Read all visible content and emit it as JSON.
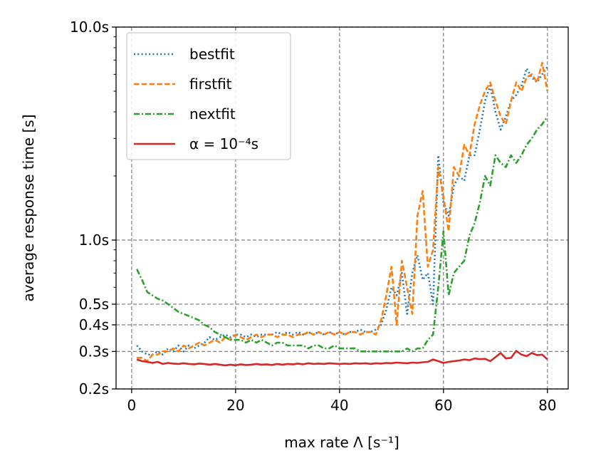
{
  "chart_data": {
    "type": "line",
    "title": "",
    "xlabel": "max rate Λ [s⁻¹]",
    "ylabel": "average response time [s]",
    "xlim": [
      -3,
      84
    ],
    "ylim": [
      0.2,
      10.0
    ],
    "yscale": "log",
    "grid": true,
    "legend_position": "top-left",
    "x_ticks": [
      0,
      20,
      40,
      60,
      80
    ],
    "x_tick_labels": [
      "0",
      "20",
      "40",
      "60",
      "80"
    ],
    "y_ticks": [
      0.2,
      0.3,
      0.4,
      0.5,
      1.0,
      10.0
    ],
    "y_tick_labels": [
      "0.2s",
      "0.3s",
      "0.4s",
      "0.5s",
      "1.0s",
      "10.0s"
    ],
    "series": [
      {
        "name": "bestfit",
        "color": "#1f77b4",
        "style": "dotted",
        "points": [
          [
            1,
            0.32
          ],
          [
            2,
            0.3
          ],
          [
            3,
            0.29
          ],
          [
            4,
            0.29
          ],
          [
            5,
            0.3
          ],
          [
            6,
            0.29
          ],
          [
            7,
            0.31
          ],
          [
            8,
            0.3
          ],
          [
            9,
            0.32
          ],
          [
            10,
            0.3
          ],
          [
            11,
            0.32
          ],
          [
            12,
            0.31
          ],
          [
            13,
            0.32
          ],
          [
            14,
            0.33
          ],
          [
            15,
            0.35
          ],
          [
            16,
            0.34
          ],
          [
            17,
            0.35
          ],
          [
            18,
            0.36
          ],
          [
            19,
            0.35
          ],
          [
            20,
            0.36
          ],
          [
            21,
            0.36
          ],
          [
            22,
            0.35
          ],
          [
            23,
            0.36
          ],
          [
            24,
            0.35
          ],
          [
            25,
            0.36
          ],
          [
            26,
            0.36
          ],
          [
            27,
            0.36
          ],
          [
            28,
            0.37
          ],
          [
            29,
            0.36
          ],
          [
            30,
            0.37
          ],
          [
            31,
            0.36
          ],
          [
            32,
            0.37
          ],
          [
            33,
            0.36
          ],
          [
            34,
            0.37
          ],
          [
            35,
            0.36
          ],
          [
            36,
            0.37
          ],
          [
            37,
            0.36
          ],
          [
            38,
            0.37
          ],
          [
            39,
            0.36
          ],
          [
            40,
            0.37
          ],
          [
            41,
            0.36
          ],
          [
            42,
            0.37
          ],
          [
            43,
            0.37
          ],
          [
            44,
            0.38
          ],
          [
            45,
            0.37
          ],
          [
            46,
            0.37
          ],
          [
            47,
            0.38
          ],
          [
            48,
            0.4
          ],
          [
            49,
            0.47
          ],
          [
            50,
            0.6
          ],
          [
            51,
            0.55
          ],
          [
            52,
            0.7
          ],
          [
            53,
            0.45
          ],
          [
            54,
            0.7
          ],
          [
            55,
            0.85
          ],
          [
            56,
            0.65
          ],
          [
            57,
            0.7
          ],
          [
            58,
            0.5
          ],
          [
            59,
            2.5
          ],
          [
            60,
            1.5
          ],
          [
            61,
            1.3
          ],
          [
            62,
            1.8
          ],
          [
            63,
            2.0
          ],
          [
            64,
            1.9
          ],
          [
            65,
            2.5
          ],
          [
            66,
            2.5
          ],
          [
            67,
            3.3
          ],
          [
            68,
            4.5
          ],
          [
            69,
            5.3
          ],
          [
            70,
            4.0
          ],
          [
            71,
            3.3
          ],
          [
            72,
            3.8
          ],
          [
            73,
            4.5
          ],
          [
            74,
            4.8
          ],
          [
            75,
            5.3
          ],
          [
            76,
            6.4
          ],
          [
            77,
            5.8
          ],
          [
            78,
            5.5
          ],
          [
            79,
            6.0
          ],
          [
            80,
            6.5
          ]
        ]
      },
      {
        "name": "firstfit",
        "color": "#ff7f0e",
        "style": "dashed",
        "points": [
          [
            1,
            0.28
          ],
          [
            2,
            0.28
          ],
          [
            3,
            0.27
          ],
          [
            4,
            0.29
          ],
          [
            5,
            0.29
          ],
          [
            6,
            0.3
          ],
          [
            7,
            0.3
          ],
          [
            8,
            0.31
          ],
          [
            9,
            0.3
          ],
          [
            10,
            0.32
          ],
          [
            11,
            0.31
          ],
          [
            12,
            0.32
          ],
          [
            13,
            0.33
          ],
          [
            14,
            0.32
          ],
          [
            15,
            0.33
          ],
          [
            16,
            0.34
          ],
          [
            17,
            0.33
          ],
          [
            18,
            0.35
          ],
          [
            19,
            0.34
          ],
          [
            20,
            0.36
          ],
          [
            21,
            0.35
          ],
          [
            22,
            0.34
          ],
          [
            23,
            0.35
          ],
          [
            24,
            0.36
          ],
          [
            25,
            0.35
          ],
          [
            26,
            0.36
          ],
          [
            27,
            0.36
          ],
          [
            28,
            0.35
          ],
          [
            29,
            0.36
          ],
          [
            30,
            0.36
          ],
          [
            31,
            0.35
          ],
          [
            32,
            0.36
          ],
          [
            33,
            0.36
          ],
          [
            34,
            0.37
          ],
          [
            35,
            0.36
          ],
          [
            36,
            0.37
          ],
          [
            37,
            0.36
          ],
          [
            38,
            0.37
          ],
          [
            39,
            0.36
          ],
          [
            40,
            0.37
          ],
          [
            41,
            0.36
          ],
          [
            42,
            0.37
          ],
          [
            43,
            0.37
          ],
          [
            44,
            0.36
          ],
          [
            45,
            0.37
          ],
          [
            46,
            0.37
          ],
          [
            47,
            0.36
          ],
          [
            48,
            0.42
          ],
          [
            49,
            0.55
          ],
          [
            50,
            0.75
          ],
          [
            51,
            0.4
          ],
          [
            52,
            0.8
          ],
          [
            53,
            0.6
          ],
          [
            54,
            0.45
          ],
          [
            55,
            1.3
          ],
          [
            56,
            1.7
          ],
          [
            57,
            0.75
          ],
          [
            58,
            0.9
          ],
          [
            59,
            2.2
          ],
          [
            60,
            1.6
          ],
          [
            61,
            1.1
          ],
          [
            62,
            2.2
          ],
          [
            63,
            2.0
          ],
          [
            64,
            2.8
          ],
          [
            65,
            2.5
          ],
          [
            66,
            3.5
          ],
          [
            67,
            4.3
          ],
          [
            68,
            5.0
          ],
          [
            69,
            5.5
          ],
          [
            70,
            4.5
          ],
          [
            71,
            3.8
          ],
          [
            72,
            3.5
          ],
          [
            73,
            4.5
          ],
          [
            74,
            5.5
          ],
          [
            75,
            5.0
          ],
          [
            76,
            5.8
          ],
          [
            77,
            6.0
          ],
          [
            78,
            5.5
          ],
          [
            79,
            6.8
          ],
          [
            80,
            5.0
          ]
        ]
      },
      {
        "name": "nextfit",
        "color": "#2ca02c",
        "style": "dashdot",
        "points": [
          [
            1,
            0.73
          ],
          [
            2,
            0.65
          ],
          [
            3,
            0.57
          ],
          [
            4,
            0.55
          ],
          [
            5,
            0.53
          ],
          [
            6,
            0.52
          ],
          [
            7,
            0.5
          ],
          [
            8,
            0.48
          ],
          [
            9,
            0.46
          ],
          [
            10,
            0.45
          ],
          [
            11,
            0.44
          ],
          [
            12,
            0.43
          ],
          [
            13,
            0.42
          ],
          [
            14,
            0.4
          ],
          [
            15,
            0.39
          ],
          [
            16,
            0.37
          ],
          [
            17,
            0.36
          ],
          [
            18,
            0.35
          ],
          [
            19,
            0.34
          ],
          [
            20,
            0.34
          ],
          [
            21,
            0.34
          ],
          [
            22,
            0.33
          ],
          [
            23,
            0.34
          ],
          [
            24,
            0.33
          ],
          [
            25,
            0.34
          ],
          [
            26,
            0.33
          ],
          [
            27,
            0.32
          ],
          [
            28,
            0.33
          ],
          [
            29,
            0.33
          ],
          [
            30,
            0.32
          ],
          [
            31,
            0.32
          ],
          [
            32,
            0.32
          ],
          [
            33,
            0.32
          ],
          [
            34,
            0.31
          ],
          [
            35,
            0.32
          ],
          [
            36,
            0.32
          ],
          [
            37,
            0.31
          ],
          [
            38,
            0.31
          ],
          [
            39,
            0.32
          ],
          [
            40,
            0.31
          ],
          [
            41,
            0.31
          ],
          [
            42,
            0.31
          ],
          [
            43,
            0.31
          ],
          [
            44,
            0.3
          ],
          [
            45,
            0.3
          ],
          [
            46,
            0.3
          ],
          [
            47,
            0.3
          ],
          [
            48,
            0.3
          ],
          [
            49,
            0.3
          ],
          [
            50,
            0.3
          ],
          [
            51,
            0.3
          ],
          [
            52,
            0.3
          ],
          [
            53,
            0.31
          ],
          [
            54,
            0.3
          ],
          [
            55,
            0.31
          ],
          [
            56,
            0.31
          ],
          [
            57,
            0.34
          ],
          [
            58,
            0.36
          ],
          [
            59,
            0.6
          ],
          [
            60,
            1.1
          ],
          [
            61,
            0.55
          ],
          [
            62,
            0.7
          ],
          [
            63,
            0.75
          ],
          [
            64,
            0.8
          ],
          [
            65,
            1.05
          ],
          [
            66,
            1.2
          ],
          [
            67,
            1.5
          ],
          [
            68,
            2.0
          ],
          [
            69,
            1.8
          ],
          [
            70,
            2.5
          ],
          [
            71,
            2.3
          ],
          [
            72,
            2.2
          ],
          [
            73,
            2.5
          ],
          [
            74,
            2.3
          ],
          [
            75,
            2.5
          ],
          [
            76,
            2.8
          ],
          [
            77,
            3.0
          ],
          [
            78,
            3.3
          ],
          [
            79,
            3.5
          ],
          [
            80,
            3.8
          ]
        ]
      },
      {
        "name": "α = 10⁻⁴s",
        "color": "#d62728",
        "style": "solid",
        "points": [
          [
            1,
            0.275
          ],
          [
            2,
            0.27
          ],
          [
            3,
            0.268
          ],
          [
            4,
            0.265
          ],
          [
            5,
            0.268
          ],
          [
            6,
            0.262
          ],
          [
            7,
            0.265
          ],
          [
            8,
            0.263
          ],
          [
            9,
            0.262
          ],
          [
            10,
            0.264
          ],
          [
            11,
            0.262
          ],
          [
            12,
            0.261
          ],
          [
            13,
            0.263
          ],
          [
            14,
            0.262
          ],
          [
            15,
            0.26
          ],
          [
            16,
            0.262
          ],
          [
            17,
            0.26
          ],
          [
            18,
            0.258
          ],
          [
            19,
            0.26
          ],
          [
            20,
            0.258
          ],
          [
            21,
            0.261
          ],
          [
            22,
            0.259
          ],
          [
            23,
            0.26
          ],
          [
            24,
            0.262
          ],
          [
            25,
            0.26
          ],
          [
            26,
            0.261
          ],
          [
            27,
            0.259
          ],
          [
            28,
            0.262
          ],
          [
            29,
            0.26
          ],
          [
            30,
            0.262
          ],
          [
            31,
            0.261
          ],
          [
            32,
            0.263
          ],
          [
            33,
            0.261
          ],
          [
            34,
            0.264
          ],
          [
            35,
            0.262
          ],
          [
            36,
            0.263
          ],
          [
            37,
            0.262
          ],
          [
            38,
            0.264
          ],
          [
            39,
            0.263
          ],
          [
            40,
            0.262
          ],
          [
            41,
            0.263
          ],
          [
            42,
            0.262
          ],
          [
            43,
            0.264
          ],
          [
            44,
            0.263
          ],
          [
            45,
            0.264
          ],
          [
            46,
            0.262
          ],
          [
            47,
            0.264
          ],
          [
            48,
            0.263
          ],
          [
            49,
            0.265
          ],
          [
            50,
            0.264
          ],
          [
            51,
            0.266
          ],
          [
            52,
            0.265
          ],
          [
            53,
            0.264
          ],
          [
            54,
            0.266
          ],
          [
            55,
            0.265
          ],
          [
            56,
            0.267
          ],
          [
            57,
            0.268
          ],
          [
            58,
            0.275
          ],
          [
            59,
            0.27
          ],
          [
            60,
            0.265
          ],
          [
            61,
            0.268
          ],
          [
            62,
            0.27
          ],
          [
            63,
            0.272
          ],
          [
            64,
            0.275
          ],
          [
            65,
            0.273
          ],
          [
            66,
            0.278
          ],
          [
            67,
            0.276
          ],
          [
            68,
            0.277
          ],
          [
            69,
            0.27
          ],
          [
            70,
            0.282
          ],
          [
            71,
            0.295
          ],
          [
            72,
            0.278
          ],
          [
            73,
            0.28
          ],
          [
            74,
            0.302
          ],
          [
            75,
            0.29
          ],
          [
            76,
            0.285
          ],
          [
            77,
            0.295
          ],
          [
            78,
            0.288
          ],
          [
            79,
            0.29
          ],
          [
            80,
            0.275
          ]
        ]
      }
    ]
  }
}
